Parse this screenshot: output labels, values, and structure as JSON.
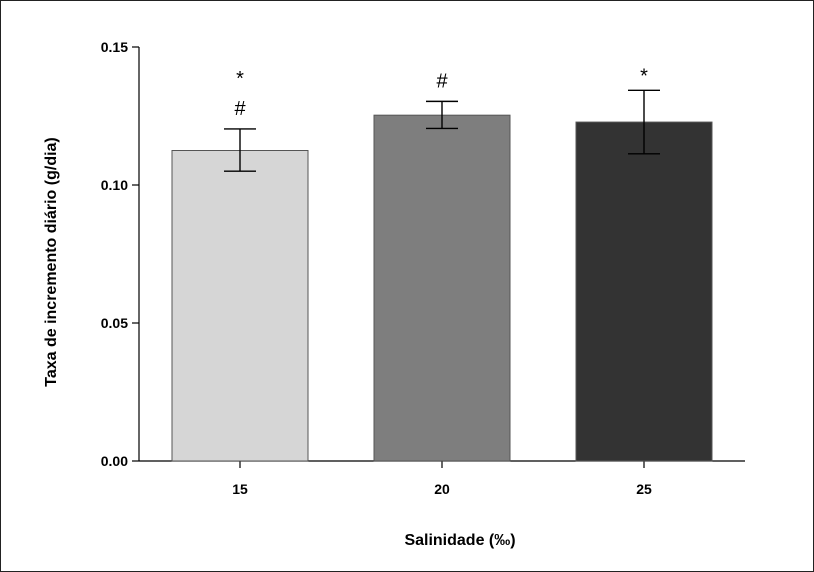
{
  "chart_data": {
    "type": "bar",
    "title": "",
    "xlabel": "Salinidade (‰)",
    "ylabel": "Taxa de incremento diário (g/dia)",
    "categories": [
      "15",
      "20",
      "25"
    ],
    "values": [
      0.1125,
      0.1253,
      0.1228
    ],
    "error_upper": [
      0.1203,
      0.1303,
      0.1343
    ],
    "error_lower": [
      0.105,
      0.1205,
      0.1113
    ],
    "bar_colors": [
      "#d6d6d6",
      "#7e7e7e",
      "#333333"
    ],
    "annotations": [
      [
        "*",
        "#"
      ],
      [
        "#"
      ],
      [
        "*"
      ]
    ],
    "ylim": [
      0,
      0.15
    ],
    "yticks": [
      "0.00",
      "0.05",
      "0.10",
      "0.15"
    ],
    "ytick_values": [
      0,
      0.05,
      0.1,
      0.15
    ],
    "grid": false,
    "legend": "none"
  }
}
